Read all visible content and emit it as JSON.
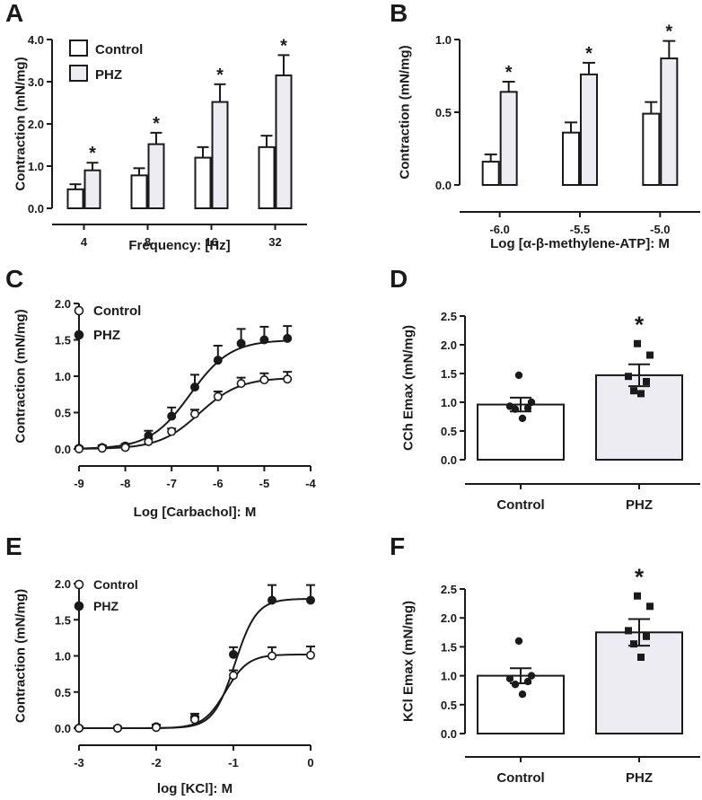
{
  "colors": {
    "control_fill": "#ffffff",
    "phz_fill": "#ececf2",
    "ink": "#1a1a1a"
  },
  "chart_data": [
    {
      "panel": "A",
      "type": "bar",
      "title": "",
      "xlabel": "Frequency: [Hz]",
      "ylabel": "Contraction (mN/mg)",
      "categories": [
        "4",
        "8",
        "16",
        "32"
      ],
      "ylim": [
        0,
        4.0
      ],
      "yticks": [
        "0.0",
        "1.0",
        "2.0",
        "3.0",
        "4.0"
      ],
      "legend": "top-left",
      "series": [
        {
          "name": "Control",
          "values": [
            0.45,
            0.78,
            1.2,
            1.45
          ],
          "errors": [
            0.12,
            0.17,
            0.25,
            0.27
          ],
          "star": [
            false,
            false,
            false,
            false
          ]
        },
        {
          "name": "PHZ",
          "values": [
            0.9,
            1.52,
            2.52,
            3.15
          ],
          "errors": [
            0.18,
            0.27,
            0.42,
            0.48
          ],
          "star": [
            true,
            true,
            true,
            true
          ]
        }
      ],
      "star_label": "*"
    },
    {
      "panel": "B",
      "type": "bar",
      "title": "",
      "xlabel": "Log [α-β-methylene-ATP]: M",
      "ylabel": "Contraction (mN/mg)",
      "categories": [
        "-6.0",
        "-5.5",
        "-5.0"
      ],
      "ylim": [
        0,
        1.0
      ],
      "yticks": [
        "0.0",
        "0.5",
        "1.0"
      ],
      "legend": "none",
      "series": [
        {
          "name": "Control",
          "values": [
            0.16,
            0.36,
            0.49
          ],
          "errors": [
            0.05,
            0.07,
            0.08
          ],
          "star": [
            false,
            false,
            false
          ]
        },
        {
          "name": "PHZ",
          "values": [
            0.64,
            0.76,
            0.87
          ],
          "errors": [
            0.07,
            0.08,
            0.12
          ],
          "star": [
            true,
            true,
            true
          ]
        }
      ],
      "star_label": "*"
    },
    {
      "panel": "C",
      "type": "line",
      "title": "",
      "xlabel": "Log [Carbachol]: M",
      "ylabel": "Contraction (mN/mg)",
      "xlim": [
        -9,
        -4
      ],
      "xticks": [
        "-9",
        "-8",
        "-7",
        "-6",
        "-5",
        "-4"
      ],
      "ylim": [
        0,
        2.0
      ],
      "yticks": [
        "0.0",
        "0.5",
        "1.0",
        "1.5",
        "2.0"
      ],
      "legend": "top-left",
      "x": [
        -9,
        -8.5,
        -8,
        -7.5,
        -7,
        -6.5,
        -6,
        -5.5,
        -5,
        -4.5
      ],
      "series": [
        {
          "name": "Control",
          "marker": "open-circle",
          "values": [
            0.0,
            0.01,
            0.02,
            0.1,
            0.24,
            0.48,
            0.72,
            0.9,
            0.95,
            0.96
          ],
          "errors": [
            0.02,
            0.02,
            0.03,
            0.04,
            0.04,
            0.06,
            0.07,
            0.08,
            0.09,
            0.1
          ],
          "fit": {
            "bottom": 0.0,
            "top": 0.98,
            "logEC50": -6.4,
            "hill": 1.0
          }
        },
        {
          "name": "PHZ",
          "marker": "filled-circle",
          "values": [
            0.01,
            0.02,
            0.04,
            0.18,
            0.45,
            0.85,
            1.22,
            1.45,
            1.5,
            1.52
          ],
          "errors": [
            0.02,
            0.03,
            0.03,
            0.07,
            0.12,
            0.17,
            0.2,
            0.2,
            0.18,
            0.17
          ],
          "fit": {
            "bottom": 0.0,
            "top": 1.5,
            "logEC50": -6.6,
            "hill": 1.0
          }
        }
      ]
    },
    {
      "panel": "D",
      "type": "bar",
      "title": "",
      "xlabel": "",
      "ylabel": "CCh Emax (mN/mg)",
      "categories": [
        "Control",
        "PHZ"
      ],
      "ylim": [
        0,
        2.5
      ],
      "yticks": [
        "0.0",
        "0.5",
        "1.0",
        "1.5",
        "2.0",
        "2.5"
      ],
      "legend": "none",
      "values": [
        0.96,
        1.47
      ],
      "errors": [
        0.12,
        0.19
      ],
      "points": [
        [
          1.47,
          1.0,
          0.93,
          0.9,
          0.88,
          0.72
        ],
        [
          2.02,
          1.82,
          1.45,
          1.36,
          1.2,
          1.15
        ]
      ],
      "star": [
        false,
        true
      ],
      "star_label": "*"
    },
    {
      "panel": "E",
      "type": "line",
      "title": "",
      "xlabel": "log [KCl]: M",
      "ylabel": "Contraction (mN/mg)",
      "xlim": [
        -3,
        0
      ],
      "xticks": [
        "-3",
        "-2",
        "-1",
        "0"
      ],
      "ylim": [
        0,
        2.0
      ],
      "yticks": [
        "0.0",
        "0.5",
        "1.0",
        "1.5",
        "2.0"
      ],
      "legend": "top-left",
      "x": [
        -3,
        -2.5,
        -2,
        -1.5,
        -1,
        -0.5,
        0
      ],
      "series": [
        {
          "name": "Control",
          "marker": "open-circle",
          "values": [
            0.0,
            0.0,
            0.01,
            0.12,
            0.73,
            1.0,
            1.01
          ],
          "errors": [
            0.02,
            0.02,
            0.03,
            0.04,
            0.07,
            0.12,
            0.12
          ],
          "fit": {
            "bottom": 0.0,
            "top": 1.02,
            "logEC50": -1.1,
            "hill": 3.0
          }
        },
        {
          "name": "PHZ",
          "marker": "filled-circle",
          "values": [
            0.0,
            0.0,
            0.02,
            0.15,
            1.02,
            1.77,
            1.77
          ],
          "errors": [
            0.02,
            0.02,
            0.03,
            0.05,
            0.1,
            0.21,
            0.21
          ],
          "fit": {
            "bottom": 0.0,
            "top": 1.79,
            "logEC50": -0.98,
            "hill": 3.1
          }
        }
      ]
    },
    {
      "panel": "F",
      "type": "bar",
      "title": "",
      "xlabel": "",
      "ylabel": "KCl Emax (mN/mg)",
      "categories": [
        "Control",
        "PHZ"
      ],
      "ylim": [
        0,
        2.5
      ],
      "yticks": [
        "0.0",
        "0.5",
        "1.0",
        "1.5",
        "2.0",
        "2.5"
      ],
      "legend": "none",
      "values": [
        1.0,
        1.75
      ],
      "errors": [
        0.13,
        0.23
      ],
      "points": [
        [
          1.6,
          1.0,
          0.95,
          0.9,
          0.85,
          0.68
        ],
        [
          2.38,
          2.2,
          1.78,
          1.68,
          1.55,
          1.32
        ]
      ],
      "star": [
        false,
        true
      ],
      "star_label": "*"
    }
  ]
}
